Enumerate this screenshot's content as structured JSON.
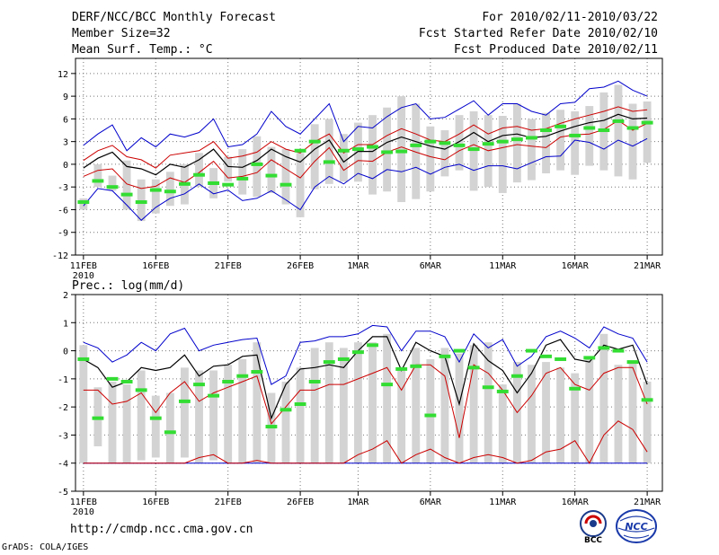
{
  "header": {
    "title": "DERF/NCC/BCC Monthly Forecast",
    "member": "Member Size=32",
    "variable": "Mean Surf. Temp.: °C",
    "period": "For 2010/02/11-2010/03/22",
    "started": "Fcst Started Refer Date 2010/02/10",
    "produced": "Fcst Produced Date 2010/02/11"
  },
  "footer": {
    "url": "http://cmdp.ncc.cma.gov.cn",
    "grads": "GrADS: COLA/IGES",
    "logo_bcc": "BCC",
    "logo_ncc": "NCC"
  },
  "colors": {
    "max": "#0000cc",
    "pct": "#cc0000",
    "mean": "#000000",
    "obs": "#33dd33",
    "bar": "#d3d3d3"
  },
  "chart_data": [
    {
      "type": "line",
      "title": "Mean Surf. Temp.: °C",
      "x_tick_labels": [
        "11FEB",
        "16FEB",
        "21FEB",
        "26FEB",
        "1MAR",
        "6MAR",
        "11MAR",
        "16MAR",
        "21MAR"
      ],
      "x_tick_year": "2010",
      "x_tick_positions": [
        1,
        6,
        11,
        16,
        20,
        25,
        30,
        35,
        40
      ],
      "ylim": [
        -12,
        14
      ],
      "yticks": [
        -12,
        -9,
        -6,
        -3,
        0,
        3,
        6,
        9,
        12
      ],
      "days": [
        1,
        40
      ],
      "series": [
        {
          "name": "max",
          "values": [
            2.5,
            4,
            5.2,
            1.8,
            3.5,
            2.3,
            4,
            3.6,
            4.2,
            6,
            2.3,
            2.6,
            4,
            7,
            5,
            4,
            6,
            8,
            3,
            5,
            4.8,
            6.3,
            7.5,
            8,
            6,
            6.2,
            7.3,
            8.4,
            6.5,
            8,
            8,
            7,
            6.5,
            8,
            8.2,
            10,
            10.2,
            11,
            9.8,
            9
          ]
        },
        {
          "name": "p75",
          "values": [
            0.5,
            1.8,
            2.5,
            1,
            0.6,
            -0.5,
            1.2,
            1.5,
            1.8,
            3,
            0.8,
            1.1,
            1.6,
            3,
            2,
            1.5,
            3,
            4,
            1.5,
            2.6,
            2.6,
            3.8,
            4.7,
            4,
            3.2,
            3,
            4,
            5.2,
            4,
            4.8,
            5,
            4.5,
            4.7,
            5.4,
            6,
            6.5,
            7,
            7.6,
            7,
            7.2
          ]
        },
        {
          "name": "mean",
          "values": [
            -0.5,
            0.8,
            1.6,
            -0.3,
            -0.6,
            -1.4,
            0,
            -0.4,
            0.6,
            2,
            -0.3,
            -0.4,
            0.5,
            2,
            1,
            0.3,
            2,
            3.2,
            0.3,
            1.7,
            1.7,
            2.9,
            3.6,
            3,
            2.4,
            2,
            3,
            4.2,
            3,
            3.8,
            4,
            3.5,
            3.7,
            4.4,
            5,
            5.5,
            5.8,
            6.6,
            6,
            6.1
          ]
        },
        {
          "name": "p25",
          "values": [
            -1.6,
            -0.8,
            -0.6,
            -2.6,
            -3.2,
            -2.9,
            -1.8,
            -2.4,
            -1.1,
            0.4,
            -1.8,
            -1.6,
            -1.1,
            0.6,
            -0.6,
            -1.8,
            0.4,
            2.2,
            -0.8,
            0.5,
            0.4,
            1.6,
            2.3,
            1.6,
            1,
            0.6,
            1.8,
            2.6,
            1.8,
            2.2,
            2.6,
            2.4,
            2.2,
            3.6,
            3.9,
            4,
            4.6,
            5.8,
            4.5,
            5.4
          ]
        },
        {
          "name": "min",
          "values": [
            -5.5,
            -3.2,
            -3.5,
            -5.4,
            -7.4,
            -5.7,
            -4.5,
            -3.9,
            -2.6,
            -3.9,
            -3.4,
            -4.8,
            -4.5,
            -3.5,
            -4.7,
            -6,
            -3,
            -1.6,
            -2.6,
            -1.2,
            -1.9,
            -0.7,
            -1,
            -0.4,
            -1.3,
            -0.4,
            0,
            -0.8,
            -0.2,
            -0.2,
            -0.6,
            0.2,
            1,
            1.1,
            3.2,
            2.9,
            2,
            3.2,
            2.4,
            3.4
          ]
        },
        {
          "name": "observed",
          "values": [
            -5,
            -2.2,
            -3,
            -4,
            -5,
            -3.4,
            -3.6,
            -2.6,
            -1.4,
            -2.5,
            -2.7,
            -1.9,
            0,
            -1.5,
            -2.7,
            1.8,
            3,
            0.3,
            1.8,
            2,
            2.3,
            1.6,
            1.7,
            2.5,
            3,
            2.8,
            2.5,
            2,
            2.7,
            3,
            3.3,
            3.5,
            4.5,
            5,
            3.8,
            4.8,
            4.5,
            5.7,
            4.8,
            5.5
          ]
        },
        {
          "name": "range_low",
          "values": [
            -6,
            -3,
            -3.5,
            -6,
            -7.5,
            -6.5,
            -5.5,
            -5.3,
            -3,
            -4.5,
            -2.3,
            -4,
            -4.3,
            -3.8,
            -5.3,
            -7,
            -3.3,
            -2.6,
            -2.3,
            -2.3,
            -4,
            -3.6,
            -5,
            -4.6,
            -3.6,
            -1.6,
            -0.8,
            -3.5,
            -3,
            -3.8,
            -2.4,
            -2.1,
            -1.2,
            -0.8,
            -1.4,
            -0.2,
            -0.8,
            -1.6,
            -2,
            0.2
          ]
        },
        {
          "name": "range_high",
          "values": [
            -4.5,
            0,
            -1.5,
            0.5,
            -2,
            -2,
            -1,
            0,
            1.5,
            -0.5,
            1,
            2,
            3.7,
            2.3,
            2,
            1.5,
            5.3,
            6,
            4,
            5.5,
            6.5,
            7.5,
            9,
            8,
            5,
            4.5,
            6.5,
            7,
            6.5,
            6.4,
            8,
            6,
            6.8,
            7.2,
            7,
            7.7,
            9.5,
            10.5,
            8,
            8.3
          ]
        }
      ]
    },
    {
      "type": "line",
      "title": "Prec.: log(mm/d)",
      "x_tick_labels": [
        "11FEB",
        "16FEB",
        "21FEB",
        "26FEB",
        "1MAR",
        "6MAR",
        "11MAR",
        "16MAR",
        "21MAR"
      ],
      "x_tick_year": "2010",
      "x_tick_positions": [
        1,
        6,
        11,
        16,
        20,
        25,
        30,
        35,
        40
      ],
      "ylim": [
        -5,
        2
      ],
      "yticks": [
        -5,
        -4,
        -3,
        -2,
        -1,
        0,
        1,
        2
      ],
      "days": [
        1,
        40
      ],
      "series": [
        {
          "name": "max",
          "values": [
            0.3,
            0.1,
            -0.4,
            -0.15,
            0.3,
            0,
            0.6,
            0.8,
            0,
            0.2,
            0.3,
            0.4,
            0.45,
            -1.2,
            -0.9,
            0.3,
            0.35,
            0.5,
            0.5,
            0.6,
            0.9,
            0.85,
            0,
            0.7,
            0.7,
            0.5,
            -0.4,
            0.6,
            0.1,
            0.4,
            -0.55,
            -0.2,
            0.5,
            0.7,
            0.45,
            0.1,
            0.85,
            0.6,
            0.45,
            -0.4
          ]
        },
        {
          "name": "mean",
          "values": [
            -0.3,
            -0.6,
            -1.3,
            -1.1,
            -0.6,
            -0.7,
            -0.6,
            -0.15,
            -0.9,
            -0.55,
            -0.5,
            -0.2,
            -0.15,
            -2.4,
            -1.2,
            -0.65,
            -0.6,
            -0.5,
            -0.6,
            0,
            0.5,
            0.5,
            -0.7,
            0.3,
            0,
            -0.2,
            -1.9,
            0.25,
            -0.35,
            -0.7,
            -1.5,
            -0.8,
            0.2,
            0.4,
            -0.3,
            -0.4,
            0.2,
            0.05,
            0.2,
            -1.2
          ]
        },
        {
          "name": "p75",
          "values": [
            -1.4,
            -1.4,
            -1.9,
            -1.8,
            -1.5,
            -2.2,
            -1.5,
            -1.1,
            -1.8,
            -1.5,
            -1.3,
            -1.1,
            -0.9,
            -2.6,
            -2,
            -1.4,
            -1.4,
            -1.2,
            -1.2,
            -1,
            -0.8,
            -0.6,
            -1.4,
            -0.5,
            -0.5,
            -0.9,
            -3.1,
            -0.5,
            -0.8,
            -1.4,
            -2.2,
            -1.6,
            -0.8,
            -0.6,
            -1.2,
            -1.4,
            -0.8,
            -0.6,
            -0.6,
            -1.9
          ]
        },
        {
          "name": "p25",
          "values": [
            -4,
            -4,
            -4,
            -4,
            -4,
            -4,
            -4,
            -4,
            -3.8,
            -3.7,
            -4,
            -4,
            -3.9,
            -4,
            -4,
            -4,
            -4,
            -4,
            -4,
            -3.7,
            -3.5,
            -3.2,
            -4,
            -3.7,
            -3.5,
            -3.8,
            -4,
            -3.8,
            -3.7,
            -3.8,
            -4,
            -3.9,
            -3.6,
            -3.5,
            -3.2,
            -4,
            -3,
            -2.5,
            -2.8,
            -3.6
          ]
        },
        {
          "name": "min",
          "values": [
            -4,
            -4,
            -4,
            -4,
            -4,
            -4,
            -4,
            -4,
            -4,
            -4,
            -4,
            -4,
            -4,
            -4,
            -4,
            -4,
            -4,
            -4,
            -4,
            -4,
            -4,
            -4,
            -4,
            -4,
            -4,
            -4,
            -4,
            -4,
            -4,
            -4,
            -4,
            -4,
            -4,
            -4,
            -4,
            -4,
            -4,
            -4,
            -4,
            -4
          ]
        },
        {
          "name": "observed",
          "values": [
            -0.3,
            -2.4,
            -1,
            -1.1,
            -1.4,
            -2.4,
            -2.9,
            -1.8,
            -1.2,
            -1.6,
            -1.1,
            -0.9,
            -0.75,
            -2.7,
            -2.1,
            -1.9,
            -1.1,
            -0.4,
            -0.3,
            -0.05,
            0.2,
            -1.2,
            -0.65,
            -0.55,
            -2.3,
            -0.2,
            0,
            -0.6,
            -1.3,
            -1.45,
            -0.9,
            0,
            -0.2,
            -0.3,
            -1.35,
            -0.25,
            0.1,
            0,
            -0.4,
            -1.75
          ]
        },
        {
          "name": "range_low",
          "values": [
            -4,
            -3.4,
            -4,
            -4,
            -3.9,
            -3.8,
            -4,
            -3.8,
            -4,
            -3.9,
            -4,
            -4,
            -4,
            -4,
            -4,
            -4,
            -4,
            -4,
            -4,
            -4,
            -4,
            -4,
            -4,
            -4,
            -4,
            -4,
            -4,
            -4,
            -4,
            -4,
            -4,
            -4,
            -4,
            -4,
            -4,
            -4,
            -4,
            -4,
            -4,
            -4
          ]
        },
        {
          "name": "range_high",
          "values": [
            0.2,
            -1.3,
            -1.1,
            -1.2,
            -0.7,
            -1.6,
            -1.5,
            -0.6,
            -0.7,
            -0.7,
            -0.5,
            -0.3,
            0.3,
            -1.5,
            -1.1,
            -0.6,
            0.1,
            0.3,
            0.1,
            0.3,
            0.3,
            0.6,
            -0.6,
            0.1,
            -0.3,
            0.1,
            -0.1,
            0.2,
            0.3,
            -1.2,
            -0.4,
            -0.5,
            -0.4,
            -0.6,
            -0.8,
            -0.2,
            0.6,
            -0.5,
            -0.4,
            -1.1
          ]
        }
      ]
    }
  ]
}
